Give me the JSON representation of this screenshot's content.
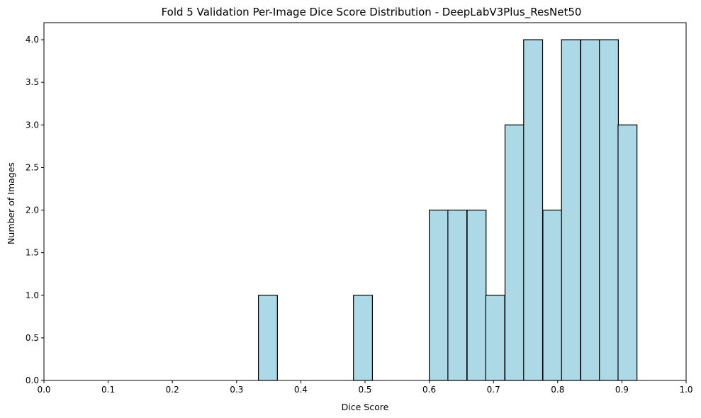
{
  "chart_data": {
    "type": "bar",
    "title": "Fold 5 Validation Per-Image Dice Score Distribution - DeepLabV3Plus_ResNet50",
    "xlabel": "Dice Score",
    "ylabel": "Number of Images",
    "xlim": [
      0.0,
      1.0
    ],
    "ylim": [
      0.0,
      4.2
    ],
    "xticks": [
      "0.0",
      "0.1",
      "0.2",
      "0.3",
      "0.4",
      "0.5",
      "0.6",
      "0.7",
      "0.8",
      "0.9",
      "1.0"
    ],
    "yticks": [
      "0.0",
      "0.5",
      "1.0",
      "1.5",
      "2.0",
      "2.5",
      "3.0",
      "3.5",
      "4.0"
    ],
    "bin_width": 0.0295,
    "bins": [
      {
        "start": 0.334,
        "count": 1
      },
      {
        "start": 0.482,
        "count": 1
      },
      {
        "start": 0.6,
        "count": 2
      },
      {
        "start": 0.629,
        "count": 2
      },
      {
        "start": 0.659,
        "count": 2
      },
      {
        "start": 0.688,
        "count": 1
      },
      {
        "start": 0.718,
        "count": 3
      },
      {
        "start": 0.747,
        "count": 4
      },
      {
        "start": 0.777,
        "count": 2
      },
      {
        "start": 0.806,
        "count": 4
      },
      {
        "start": 0.836,
        "count": 4
      },
      {
        "start": 0.865,
        "count": 4
      },
      {
        "start": 0.894,
        "count": 3
      }
    ],
    "bar_color": "#add8e6",
    "edge_color": "#000000",
    "grid": false
  }
}
